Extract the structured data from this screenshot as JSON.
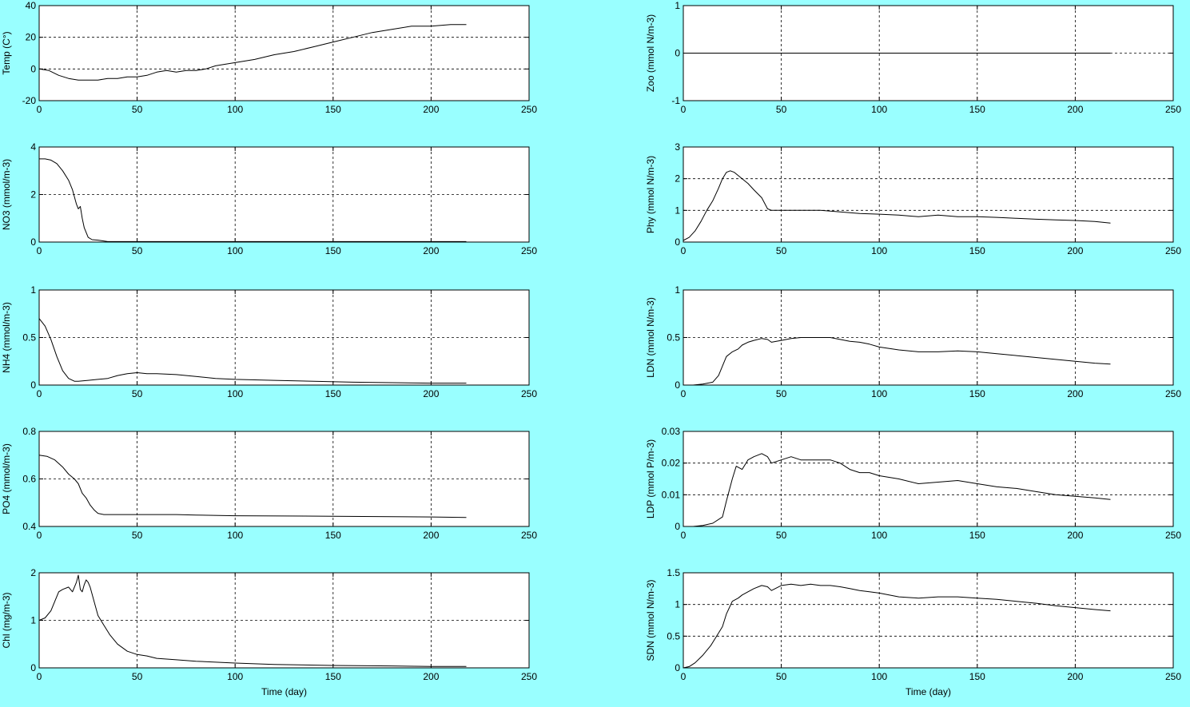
{
  "figure": {
    "background": "#99ffff",
    "plot_background": "#ffffff",
    "line_color": "#000000"
  },
  "chart_data": [
    {
      "type": "line",
      "id": "temp",
      "ylabel": "Temp (C°)",
      "xlabel": "",
      "xlim": [
        0,
        250
      ],
      "ylim": [
        -20,
        40
      ],
      "xticks": [
        "0",
        "50",
        "100",
        "150",
        "200",
        "250"
      ],
      "yticks": [
        "-20",
        "0",
        "20",
        "40"
      ],
      "grid": true,
      "x": [
        0,
        5,
        10,
        15,
        20,
        25,
        30,
        35,
        40,
        45,
        50,
        55,
        60,
        65,
        70,
        75,
        80,
        85,
        90,
        95,
        100,
        110,
        120,
        130,
        140,
        150,
        160,
        170,
        180,
        190,
        200,
        210,
        218
      ],
      "y": [
        0,
        -1,
        -4,
        -6,
        -7,
        -7,
        -7,
        -6,
        -6,
        -5,
        -5,
        -4,
        -2,
        -1,
        -2,
        -1,
        -1,
        0,
        2,
        3,
        4,
        6,
        9,
        11,
        14,
        17,
        20,
        23,
        25,
        27,
        27,
        28,
        28
      ]
    },
    {
      "type": "line",
      "id": "zoo",
      "ylabel": "Zoo (mmol N/m-3)",
      "xlabel": "",
      "xlim": [
        0,
        250
      ],
      "ylim": [
        -1,
        1
      ],
      "xticks": [
        "0",
        "50",
        "100",
        "150",
        "200",
        "250"
      ],
      "yticks": [
        "-1",
        "0",
        "1"
      ],
      "grid": true,
      "x": [
        0,
        218
      ],
      "y": [
        0,
        0
      ]
    },
    {
      "type": "line",
      "id": "no3",
      "ylabel": "NO3 (mmol/m-3)",
      "xlabel": "",
      "xlim": [
        0,
        250
      ],
      "ylim": [
        0,
        4
      ],
      "xticks": [
        "0",
        "50",
        "100",
        "150",
        "200",
        "250"
      ],
      "yticks": [
        "0",
        "2",
        "4"
      ],
      "grid": true,
      "x": [
        0,
        3,
        6,
        9,
        12,
        15,
        17,
        19,
        20,
        21,
        22,
        23,
        25,
        27,
        30,
        35,
        50,
        100,
        150,
        218
      ],
      "y": [
        3.5,
        3.5,
        3.45,
        3.3,
        3.0,
        2.6,
        2.2,
        1.6,
        1.4,
        1.5,
        1.0,
        0.6,
        0.2,
        0.1,
        0.08,
        0.02,
        0.02,
        0.02,
        0.02,
        0.02
      ]
    },
    {
      "type": "line",
      "id": "phy",
      "ylabel": "Phy (mmol N/m-3)",
      "xlabel": "",
      "xlim": [
        0,
        250
      ],
      "ylim": [
        0,
        3
      ],
      "xticks": [
        "0",
        "50",
        "100",
        "150",
        "200",
        "250"
      ],
      "yticks": [
        "0",
        "1",
        "2",
        "3"
      ],
      "grid": true,
      "x": [
        0,
        3,
        6,
        9,
        12,
        15,
        18,
        20,
        22,
        24,
        26,
        28,
        30,
        33,
        36,
        40,
        43,
        45,
        50,
        55,
        60,
        70,
        80,
        90,
        100,
        110,
        120,
        130,
        140,
        150,
        160,
        170,
        180,
        190,
        200,
        210,
        218
      ],
      "y": [
        0.05,
        0.15,
        0.35,
        0.65,
        1.0,
        1.3,
        1.7,
        2.0,
        2.2,
        2.25,
        2.2,
        2.1,
        2.0,
        1.85,
        1.65,
        1.4,
        1.05,
        1.0,
        1.0,
        1.0,
        1.0,
        1.0,
        0.95,
        0.9,
        0.88,
        0.85,
        0.8,
        0.85,
        0.8,
        0.8,
        0.78,
        0.75,
        0.72,
        0.7,
        0.68,
        0.65,
        0.6
      ]
    },
    {
      "type": "line",
      "id": "nh4",
      "ylabel": "NH4 (mmol/m-3)",
      "xlabel": "",
      "xlim": [
        0,
        250
      ],
      "ylim": [
        0,
        1
      ],
      "xticks": [
        "0",
        "50",
        "100",
        "150",
        "200",
        "250"
      ],
      "yticks": [
        "0",
        "0.5",
        "1"
      ],
      "grid": true,
      "x": [
        0,
        3,
        6,
        9,
        12,
        15,
        18,
        20,
        25,
        30,
        35,
        40,
        45,
        50,
        55,
        60,
        70,
        80,
        90,
        100,
        120,
        140,
        160,
        180,
        200,
        218
      ],
      "y": [
        0.7,
        0.62,
        0.48,
        0.3,
        0.15,
        0.07,
        0.04,
        0.04,
        0.05,
        0.06,
        0.07,
        0.1,
        0.12,
        0.13,
        0.12,
        0.12,
        0.11,
        0.09,
        0.07,
        0.06,
        0.05,
        0.04,
        0.03,
        0.025,
        0.02,
        0.02
      ]
    },
    {
      "type": "line",
      "id": "ldn",
      "ylabel": "LDN (mmol N/m-3)",
      "xlabel": "",
      "xlim": [
        0,
        250
      ],
      "ylim": [
        0,
        1
      ],
      "xticks": [
        "0",
        "50",
        "100",
        "150",
        "200",
        "250"
      ],
      "yticks": [
        "0",
        "0.5",
        "1"
      ],
      "grid": true,
      "x": [
        0,
        5,
        10,
        15,
        18,
        20,
        22,
        25,
        28,
        30,
        33,
        36,
        40,
        43,
        45,
        50,
        55,
        60,
        65,
        70,
        75,
        80,
        85,
        90,
        95,
        100,
        110,
        120,
        130,
        140,
        150,
        160,
        170,
        180,
        190,
        200,
        210,
        218
      ],
      "y": [
        0,
        0,
        0.01,
        0.03,
        0.1,
        0.2,
        0.3,
        0.35,
        0.38,
        0.42,
        0.45,
        0.47,
        0.49,
        0.48,
        0.45,
        0.47,
        0.49,
        0.5,
        0.5,
        0.5,
        0.5,
        0.48,
        0.46,
        0.45,
        0.43,
        0.4,
        0.37,
        0.35,
        0.35,
        0.36,
        0.35,
        0.33,
        0.31,
        0.29,
        0.27,
        0.25,
        0.23,
        0.22
      ]
    },
    {
      "type": "line",
      "id": "po4",
      "ylabel": "PO4 (mmol/m-3)",
      "xlabel": "",
      "xlim": [
        0,
        250
      ],
      "ylim": [
        0.4,
        0.8
      ],
      "xticks": [
        "0",
        "50",
        "100",
        "150",
        "200",
        "250"
      ],
      "yticks": [
        "0.4",
        "0.6",
        "0.8"
      ],
      "grid": true,
      "x": [
        0,
        4,
        8,
        12,
        15,
        18,
        20,
        22,
        24,
        26,
        28,
        30,
        33,
        36,
        40,
        50,
        60,
        70,
        80,
        100,
        150,
        200,
        218
      ],
      "y": [
        0.7,
        0.695,
        0.68,
        0.65,
        0.62,
        0.6,
        0.58,
        0.54,
        0.52,
        0.49,
        0.47,
        0.455,
        0.45,
        0.45,
        0.45,
        0.45,
        0.45,
        0.45,
        0.448,
        0.445,
        0.443,
        0.44,
        0.438
      ]
    },
    {
      "type": "line",
      "id": "ldp",
      "ylabel": "LDP (mmol P/m-3)",
      "xlabel": "",
      "xlim": [
        0,
        250
      ],
      "ylim": [
        0,
        0.03
      ],
      "xticks": [
        "0",
        "50",
        "100",
        "150",
        "200",
        "250"
      ],
      "yticks": [
        "0",
        "0.01",
        "0.02",
        "0.03"
      ],
      "grid": true,
      "x": [
        0,
        5,
        10,
        15,
        20,
        22,
        25,
        27,
        30,
        33,
        36,
        40,
        43,
        45,
        50,
        55,
        60,
        65,
        70,
        75,
        80,
        85,
        90,
        95,
        100,
        110,
        120,
        130,
        140,
        150,
        160,
        170,
        180,
        190,
        200,
        210,
        218
      ],
      "y": [
        0,
        0,
        0.0003,
        0.001,
        0.003,
        0.008,
        0.015,
        0.019,
        0.018,
        0.021,
        0.022,
        0.023,
        0.022,
        0.02,
        0.021,
        0.022,
        0.021,
        0.021,
        0.021,
        0.021,
        0.02,
        0.018,
        0.017,
        0.017,
        0.016,
        0.015,
        0.0135,
        0.014,
        0.0145,
        0.0135,
        0.0125,
        0.012,
        0.011,
        0.01,
        0.0095,
        0.009,
        0.0085
      ]
    },
    {
      "type": "line",
      "id": "chl",
      "ylabel": "Chl (mg/m-3)",
      "xlabel": "Time (day)",
      "xlim": [
        0,
        250
      ],
      "ylim": [
        0,
        2
      ],
      "xticks": [
        "0",
        "50",
        "100",
        "150",
        "200",
        "250"
      ],
      "yticks": [
        "0",
        "1",
        "2"
      ],
      "grid": true,
      "x": [
        0,
        3,
        6,
        8,
        10,
        12,
        15,
        17,
        19,
        20,
        21,
        22,
        23,
        24,
        25,
        26,
        28,
        30,
        33,
        36,
        40,
        45,
        50,
        55,
        60,
        70,
        80,
        100,
        120,
        150,
        180,
        200,
        218
      ],
      "y": [
        1.0,
        1.05,
        1.2,
        1.4,
        1.6,
        1.65,
        1.7,
        1.6,
        1.8,
        1.95,
        1.65,
        1.6,
        1.75,
        1.85,
        1.8,
        1.7,
        1.4,
        1.1,
        0.9,
        0.7,
        0.5,
        0.35,
        0.28,
        0.25,
        0.2,
        0.17,
        0.14,
        0.1,
        0.07,
        0.05,
        0.04,
        0.03,
        0.03
      ]
    },
    {
      "type": "line",
      "id": "sdn",
      "ylabel": "SDN (mmol N/m-3)",
      "xlabel": "Time (day)",
      "xlim": [
        0,
        250
      ],
      "ylim": [
        0,
        1.5
      ],
      "xticks": [
        "0",
        "50",
        "100",
        "150",
        "200",
        "250"
      ],
      "yticks": [
        "0",
        "0.5",
        "1",
        "1.5"
      ],
      "grid": true,
      "x": [
        0,
        3,
        6,
        10,
        14,
        18,
        20,
        22,
        25,
        28,
        30,
        33,
        36,
        40,
        43,
        45,
        50,
        55,
        60,
        65,
        70,
        75,
        80,
        85,
        90,
        95,
        100,
        110,
        120,
        130,
        140,
        150,
        160,
        170,
        180,
        190,
        200,
        210,
        218
      ],
      "y": [
        0,
        0.02,
        0.08,
        0.2,
        0.35,
        0.55,
        0.65,
        0.85,
        1.05,
        1.1,
        1.15,
        1.2,
        1.25,
        1.3,
        1.28,
        1.22,
        1.3,
        1.32,
        1.3,
        1.32,
        1.3,
        1.3,
        1.28,
        1.25,
        1.22,
        1.2,
        1.18,
        1.12,
        1.1,
        1.12,
        1.12,
        1.1,
        1.08,
        1.05,
        1.02,
        0.98,
        0.95,
        0.92,
        0.9
      ]
    }
  ]
}
